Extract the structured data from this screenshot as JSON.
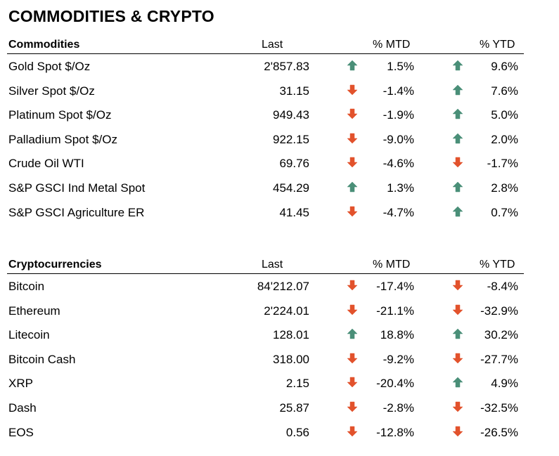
{
  "title": "COMMODITIES & CRYPTO",
  "colors": {
    "up": "#4a8f78",
    "down": "#e2522c"
  },
  "commodities": {
    "header": {
      "name": "Commodities",
      "last": "Last",
      "mtd": "% MTD",
      "ytd": "% YTD"
    },
    "rows": [
      {
        "name": "Gold Spot   $/Oz",
        "last": "2'857.83",
        "mtd": "1.5%",
        "mtd_dir": "up",
        "ytd": "9.6%",
        "ytd_dir": "up"
      },
      {
        "name": "Silver Spot  $/Oz",
        "last": "31.15",
        "mtd": "-1.4%",
        "mtd_dir": "down",
        "ytd": "7.6%",
        "ytd_dir": "up"
      },
      {
        "name": "Platinum Spot  $/Oz",
        "last": "949.43",
        "mtd": "-1.9%",
        "mtd_dir": "down",
        "ytd": "5.0%",
        "ytd_dir": "up"
      },
      {
        "name": "Palladium Spot  $/Oz",
        "last": "922.15",
        "mtd": "-9.0%",
        "mtd_dir": "down",
        "ytd": "2.0%",
        "ytd_dir": "up"
      },
      {
        "name": "Crude Oil WTI",
        "last": "69.76",
        "mtd": "-4.6%",
        "mtd_dir": "down",
        "ytd": "-1.7%",
        "ytd_dir": "down"
      },
      {
        "name": "S&P GSCI Ind Metal Spot",
        "last": "454.29",
        "mtd": "1.3%",
        "mtd_dir": "up",
        "ytd": "2.8%",
        "ytd_dir": "up"
      },
      {
        "name": "S&P GSCI Agriculture ER",
        "last": "41.45",
        "mtd": "-4.7%",
        "mtd_dir": "down",
        "ytd": "0.7%",
        "ytd_dir": "up"
      }
    ]
  },
  "crypto": {
    "header": {
      "name": "Cryptocurrencies",
      "last": "Last",
      "mtd": "% MTD",
      "ytd": "% YTD"
    },
    "rows": [
      {
        "name": "Bitcoin",
        "last": "84'212.07",
        "mtd": "-17.4%",
        "mtd_dir": "down",
        "ytd": "-8.4%",
        "ytd_dir": "down"
      },
      {
        "name": "Ethereum",
        "last": "2'224.01",
        "mtd": "-21.1%",
        "mtd_dir": "down",
        "ytd": "-32.9%",
        "ytd_dir": "down"
      },
      {
        "name": "Litecoin",
        "last": "128.01",
        "mtd": "18.8%",
        "mtd_dir": "up",
        "ytd": "30.2%",
        "ytd_dir": "up"
      },
      {
        "name": "Bitcoin Cash",
        "last": "318.00",
        "mtd": "-9.2%",
        "mtd_dir": "down",
        "ytd": "-27.7%",
        "ytd_dir": "down"
      },
      {
        "name": "XRP",
        "last": "2.15",
        "mtd": "-20.4%",
        "mtd_dir": "down",
        "ytd": "4.9%",
        "ytd_dir": "up"
      },
      {
        "name": "Dash",
        "last": "25.87",
        "mtd": "-2.8%",
        "mtd_dir": "down",
        "ytd": "-32.5%",
        "ytd_dir": "down"
      },
      {
        "name": "EOS",
        "last": "0.56",
        "mtd": "-12.8%",
        "mtd_dir": "down",
        "ytd": "-26.5%",
        "ytd_dir": "down"
      }
    ]
  }
}
